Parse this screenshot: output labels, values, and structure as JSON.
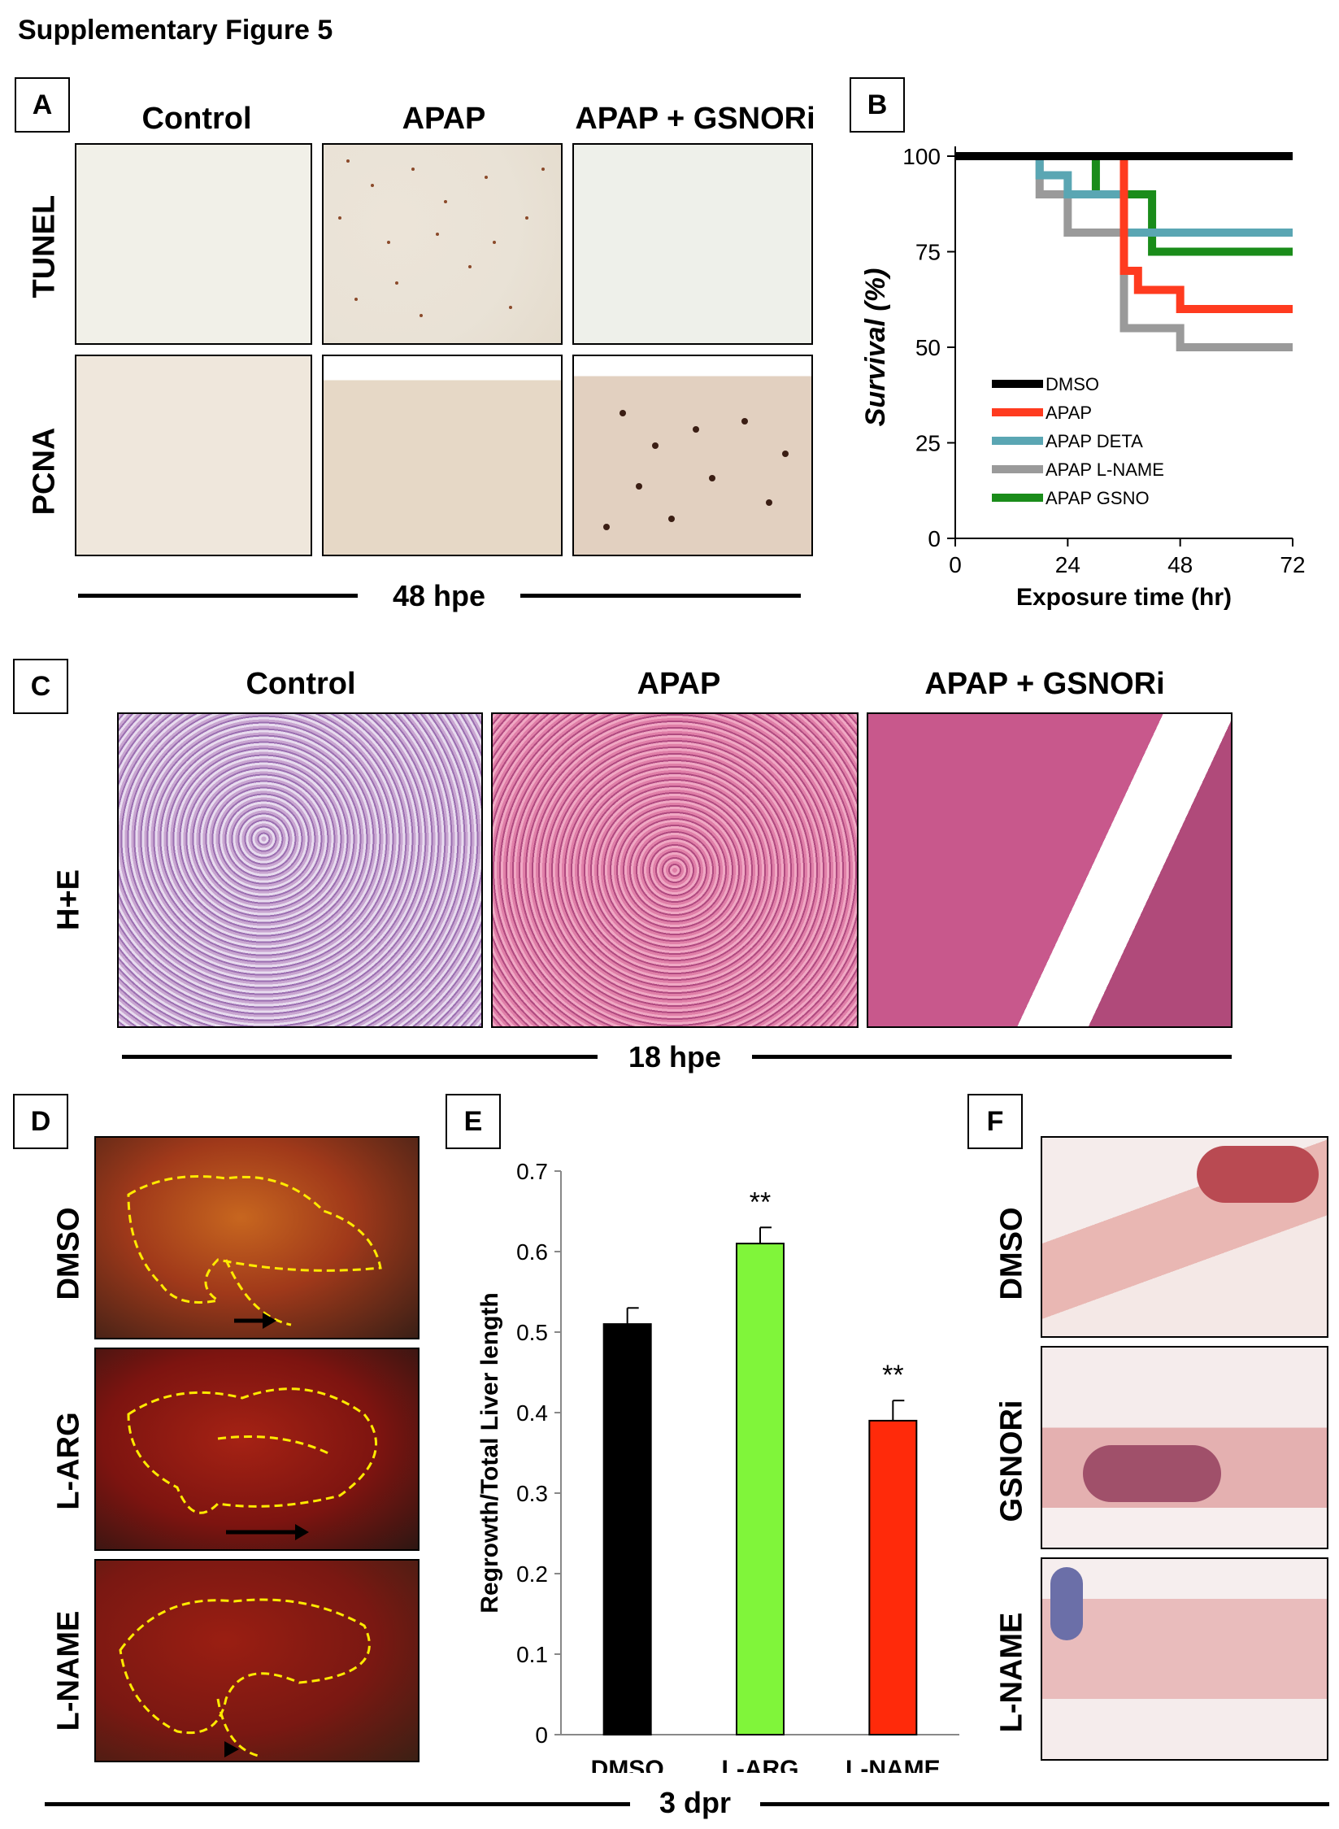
{
  "figure_title": "Supplementary Figure 5",
  "panel_labels": {
    "a": "A",
    "b": "B",
    "c": "C",
    "d": "D",
    "e": "E",
    "f": "F"
  },
  "panel_a": {
    "columns": [
      "Control",
      "APAP",
      "APAP + GSNORi"
    ],
    "rows": [
      "TUNEL",
      "PCNA"
    ],
    "timepoint": "48 hpe"
  },
  "panel_c": {
    "columns": [
      "Control",
      "APAP",
      "APAP + GSNORi"
    ],
    "row": "H+E",
    "timepoint": "18 hpe"
  },
  "panel_d": {
    "rows": [
      "DMSO",
      "L-ARG",
      "L-NAME"
    ]
  },
  "panel_f": {
    "rows": [
      "DMSO",
      "GSNORi",
      "L-NAME"
    ]
  },
  "bottom_timepoint": "3 dpr",
  "colors": {
    "dmso": "#000000",
    "apap": "#ff3b1f",
    "deta": "#5aa6b3",
    "lname": "#9a9a9a",
    "gsno": "#1a8c1a",
    "bar_dmso": "#000000",
    "bar_larg": "#80f53a",
    "bar_lname": "#ff2a0a"
  },
  "chart_data": [
    {
      "type": "line",
      "panel": "B",
      "step": true,
      "ylabel": "Survival (%)",
      "xlabel": "Exposure time (hr)",
      "xlim": [
        0,
        72
      ],
      "ylim": [
        0,
        100
      ],
      "xticks": [
        0,
        24,
        48,
        72
      ],
      "yticks": [
        0,
        25,
        50,
        75,
        100
      ],
      "legend_position": "lower-left",
      "series": [
        {
          "name": "DMSO",
          "x": [
            0,
            72
          ],
          "y": [
            100,
            100
          ]
        },
        {
          "name": "APAP",
          "x": [
            0,
            36,
            36,
            39,
            39,
            48,
            48,
            72
          ],
          "y": [
            100,
            100,
            70,
            70,
            65,
            65,
            60,
            60
          ]
        },
        {
          "name": "APAP DETA",
          "x": [
            0,
            18,
            18,
            24,
            24,
            36,
            36,
            72
          ],
          "y": [
            100,
            100,
            95,
            95,
            90,
            90,
            80,
            80
          ]
        },
        {
          "name": "APAP L-NAME",
          "x": [
            0,
            18,
            18,
            24,
            24,
            36,
            36,
            48,
            48,
            72
          ],
          "y": [
            100,
            100,
            90,
            90,
            80,
            80,
            55,
            55,
            50,
            50
          ]
        },
        {
          "name": "APAP GSNO",
          "x": [
            0,
            30,
            30,
            42,
            42,
            72
          ],
          "y": [
            100,
            100,
            90,
            90,
            75,
            75
          ]
        }
      ]
    },
    {
      "type": "bar",
      "panel": "E",
      "categories": [
        "DMSO",
        "L-ARG",
        "L-NAME"
      ],
      "values": [
        0.51,
        0.61,
        0.39
      ],
      "errors": [
        0.02,
        0.02,
        0.025
      ],
      "annotations": [
        "",
        "**",
        "**"
      ],
      "ylabel": "Regrowth/Total Liver length",
      "ylim": [
        0,
        0.7
      ],
      "yticks": [
        "0",
        "0.1",
        "0.2",
        "0.3",
        "0.4",
        "0.5",
        "0.6",
        "0.7"
      ]
    }
  ]
}
